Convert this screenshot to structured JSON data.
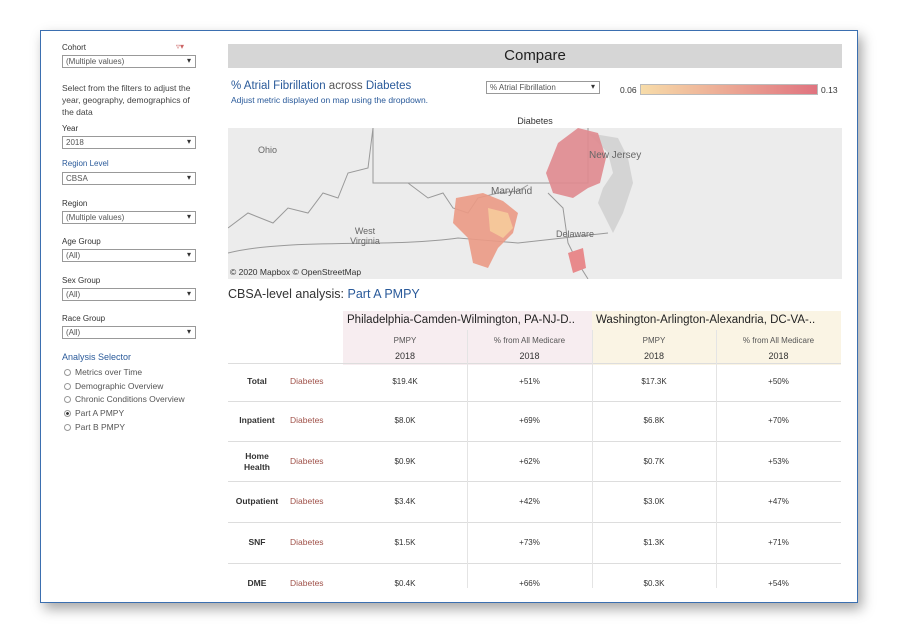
{
  "sidebar": {
    "filters": [
      {
        "label": "Cohort",
        "value": "(Multiple values)"
      },
      {
        "label": "Year",
        "value": "2018"
      },
      {
        "label": "Region Level",
        "value": "CBSA"
      },
      {
        "label": "Region",
        "value": "(Multiple values)"
      },
      {
        "label": "Age Group",
        "value": "(All)"
      },
      {
        "label": "Sex Group",
        "value": "(All)"
      },
      {
        "label": "Race Group",
        "value": "(All)"
      }
    ],
    "instructions": "Select from the filters to adjust the year, geography, demographics of the data",
    "analysis_selector": {
      "title": "Analysis Selector",
      "options": [
        "Metrics over Time",
        "Demographic Overview",
        "Chronic Conditions Overview",
        "Part A PMPY",
        "Part B PMPY"
      ],
      "selected": 3
    }
  },
  "header": {
    "title": "Compare"
  },
  "map": {
    "title_metric": "% Atrial Fibrillation",
    "title_mid": "across",
    "title_cohort": "Diabetes",
    "subtitle": "Adjust metric displayed on map using the dropdown.",
    "dropdown": "% Atrial Fibrillation",
    "legend_min": "0.06",
    "legend_max": "0.13",
    "panel_title": "Diabetes",
    "labels": [
      "Ohio",
      "Maryland",
      "New Jersey",
      "West Virginia",
      "Delaware"
    ],
    "attribution": "© 2020 Mapbox © OpenStreetMap"
  },
  "table": {
    "title": "CBSA-level analysis:",
    "title_value": "Part A PMPY",
    "regions": [
      {
        "name": "Philadelphia-Camden-Wilmington, PA-NJ-D..",
        "columns": [
          "PMPY",
          "% from All Medicare"
        ],
        "year": "2018"
      },
      {
        "name": "Washington-Arlington-Alexandria, DC-VA-..",
        "columns": [
          "PMPY",
          "% from All Medicare"
        ],
        "year": "2018"
      }
    ],
    "rows": [
      {
        "label": "Total",
        "cohort": "Diabetes",
        "values": [
          "$19.4K",
          "+51%",
          "$17.3K",
          "+50%"
        ]
      },
      {
        "label": "Inpatient",
        "cohort": "Diabetes",
        "values": [
          "$8.0K",
          "+69%",
          "$6.8K",
          "+70%"
        ]
      },
      {
        "label": "Home Health",
        "cohort": "Diabetes",
        "values": [
          "$0.9K",
          "+62%",
          "$0.7K",
          "+53%"
        ]
      },
      {
        "label": "Outpatient",
        "cohort": "Diabetes",
        "values": [
          "$3.4K",
          "+42%",
          "$3.0K",
          "+47%"
        ]
      },
      {
        "label": "SNF",
        "cohort": "Diabetes",
        "values": [
          "$1.5K",
          "+73%",
          "$1.3K",
          "+71%"
        ]
      },
      {
        "label": "DME",
        "cohort": "Diabetes",
        "values": [
          "$0.4K",
          "+66%",
          "$0.3K",
          "+54%"
        ]
      }
    ]
  }
}
